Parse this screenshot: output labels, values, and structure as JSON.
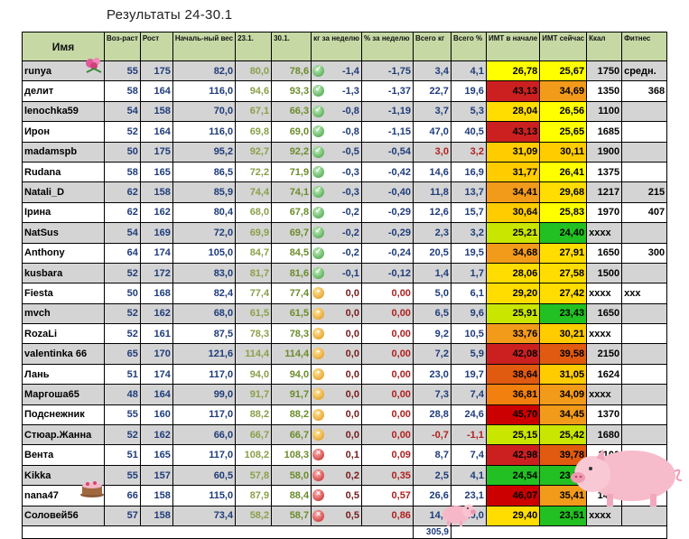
{
  "title": "Результаты  24-30.1",
  "headers": {
    "name": "Имя",
    "age": "Воз-раст",
    "height": "Рост",
    "start": "Началь-ный вес",
    "d1": "23.1.",
    "d2": "30.1.",
    "kg": "кг за неделю",
    "pct": "% за неделю",
    "totkg": "Всего кг",
    "totpct": "Всего %",
    "bmi1": "ИМТ в начале",
    "bmi2": "ИМТ сейчас",
    "kcal": "Ккал",
    "fit": "Фитнес"
  },
  "rows": [
    {
      "name": "runya",
      "age": "55",
      "height": "175",
      "start": "82,0",
      "w1": "80,0",
      "w2": "78,6",
      "mark": "green",
      "kg": "-1,4",
      "pct": "-1,75",
      "totkg": "3,4",
      "totpct": "4,1",
      "bmi1": "26,78",
      "bmi1c": "#ffff00",
      "bmi2": "25,67",
      "bmi2c": "#ffff00",
      "kcal": "1750",
      "fit": "средн."
    },
    {
      "name": "делит",
      "age": "58",
      "height": "164",
      "start": "116,0",
      "w1": "94,6",
      "w2": "93,3",
      "mark": "green",
      "kg": "-1,3",
      "pct": "-1,37",
      "totkg": "22,7",
      "totpct": "19,6",
      "bmi1": "43,13",
      "bmi1c": "#cc2020",
      "bmi2": "34,69",
      "bmi2c": "#f29a1a",
      "kcal": "1350",
      "fit": "368"
    },
    {
      "name": "lenochka59",
      "age": "54",
      "height": "158",
      "start": "70,0",
      "w1": "67,1",
      "w2": "66,3",
      "mark": "green",
      "kg": "-0,8",
      "pct": "-1,19",
      "totkg": "3,7",
      "totpct": "5,3",
      "bmi1": "28,04",
      "bmi1c": "#ffdd00",
      "bmi2": "26,56",
      "bmi2c": "#ffff00",
      "kcal": "1100",
      "fit": ""
    },
    {
      "name": "Ирон",
      "age": "52",
      "height": "164",
      "start": "116,0",
      "w1": "69,8",
      "w2": "69,0",
      "mark": "green",
      "kg": "-0,8",
      "pct": "-1,15",
      "totkg": "47,0",
      "totpct": "40,5",
      "bmi1": "43,13",
      "bmi1c": "#cc2020",
      "bmi2": "25,65",
      "bmi2c": "#ffff00",
      "kcal": "1685",
      "fit": ""
    },
    {
      "name": "madamspb",
      "age": "50",
      "height": "175",
      "start": "95,2",
      "w1": "92,7",
      "w2": "92,2",
      "mark": "green",
      "kg": "-0,5",
      "pct": "-0,54",
      "totkg": "3,0",
      "totkgneg": true,
      "totpct": "3,2",
      "totpctneg": true,
      "bmi1": "31,09",
      "bmi1c": "#ffcc00",
      "bmi2": "30,11",
      "bmi2c": "#ffcc00",
      "kcal": "1900",
      "fit": ""
    },
    {
      "name": "Rudana",
      "age": "58",
      "height": "165",
      "start": "86,5",
      "w1": "72,2",
      "w2": "71,9",
      "mark": "green",
      "kg": "-0,3",
      "pct": "-0,42",
      "totkg": "14,6",
      "totpct": "16,9",
      "bmi1": "31,77",
      "bmi1c": "#ffcc00",
      "bmi2": "26,41",
      "bmi2c": "#ffff00",
      "kcal": "1375",
      "fit": ""
    },
    {
      "name": "Natali_D",
      "age": "62",
      "height": "158",
      "start": "85,9",
      "w1": "74,4",
      "w2": "74,1",
      "mark": "green",
      "kg": "-0,3",
      "pct": "-0,40",
      "totkg": "11,8",
      "totpct": "13,7",
      "bmi1": "34,41",
      "bmi1c": "#f29a1a",
      "bmi2": "29,68",
      "bmi2c": "#ffdd00",
      "kcal": "1217",
      "fit": "215"
    },
    {
      "name": "Ірина",
      "age": "62",
      "height": "162",
      "start": "80,4",
      "w1": "68,0",
      "w2": "67,8",
      "mark": "green",
      "kg": "-0,2",
      "pct": "-0,29",
      "totkg": "12,6",
      "totpct": "15,7",
      "bmi1": "30,64",
      "bmi1c": "#ffcc00",
      "bmi2": "25,83",
      "bmi2c": "#ffff00",
      "kcal": "1970",
      "fit": "407"
    },
    {
      "name": "NatSus",
      "age": "54",
      "height": "169",
      "start": "72,0",
      "w1": "69,9",
      "w2": "69,7",
      "mark": "green",
      "kg": "-0,2",
      "pct": "-0,29",
      "totkg": "2,3",
      "totpct": "3,2",
      "bmi1": "25,21",
      "bmi1c": "#c8e600",
      "bmi2": "24,40",
      "bmi2c": "#22c022",
      "kcal": "xxxx",
      "fit": ""
    },
    {
      "name": "Anthony",
      "age": "64",
      "height": "174",
      "start": "105,0",
      "w1": "84,7",
      "w2": "84,5",
      "mark": "green",
      "kg": "-0,2",
      "pct": "-0,24",
      "totkg": "20,5",
      "totpct": "19,5",
      "bmi1": "34,68",
      "bmi1c": "#f29a1a",
      "bmi2": "27,91",
      "bmi2c": "#ffdd00",
      "kcal": "1650",
      "fit": "300"
    },
    {
      "name": "kusbara",
      "age": "52",
      "height": "172",
      "start": "83,0",
      "w1": "81,7",
      "w2": "81,6",
      "mark": "green",
      "kg": "-0,1",
      "pct": "-0,12",
      "totkg": "1,4",
      "totpct": "1,7",
      "bmi1": "28,06",
      "bmi1c": "#ffdd00",
      "bmi2": "27,58",
      "bmi2c": "#ffdd00",
      "kcal": "1500",
      "fit": ""
    },
    {
      "name": "Fiesta",
      "age": "50",
      "height": "168",
      "start": "82,4",
      "w1": "77,4",
      "w2": "77,4",
      "mark": "orange",
      "kg": "0,0",
      "pct": "0,00",
      "totkg": "5,0",
      "totpct": "6,1",
      "bmi1": "29,20",
      "bmi1c": "#ffdd00",
      "bmi2": "27,42",
      "bmi2c": "#ffdd00",
      "kcal": "xxxx",
      "fit": "xxx"
    },
    {
      "name": "mvch",
      "age": "52",
      "height": "162",
      "start": "68,0",
      "w1": "61,5",
      "w2": "61,5",
      "mark": "orange",
      "kg": "0,0",
      "pct": "0,00",
      "totkg": "6,5",
      "totpct": "9,6",
      "bmi1": "25,91",
      "bmi1c": "#c8e600",
      "bmi2": "23,43",
      "bmi2c": "#22c022",
      "kcal": "1650",
      "fit": ""
    },
    {
      "name": "RozaLi",
      "age": "52",
      "height": "161",
      "start": "87,5",
      "w1": "78,3",
      "w2": "78,3",
      "mark": "orange",
      "kg": "0,0",
      "pct": "0,00",
      "totkg": "9,2",
      "totpct": "10,5",
      "bmi1": "33,76",
      "bmi1c": "#f29a1a",
      "bmi2": "30,21",
      "bmi2c": "#ffcc00",
      "kcal": "xxxx",
      "fit": ""
    },
    {
      "name": "valentinka 66",
      "age": "65",
      "height": "170",
      "start": "121,6",
      "w1": "114,4",
      "w2": "114,4",
      "mark": "orange",
      "kg": "0,0",
      "pct": "0,00",
      "totkg": "7,2",
      "totpct": "5,9",
      "bmi1": "42,08",
      "bmi1c": "#cc2020",
      "bmi2": "39,58",
      "bmi2c": "#e05a10",
      "kcal": "2150",
      "fit": ""
    },
    {
      "name": "Лань",
      "age": "51",
      "height": "174",
      "start": "117,0",
      "w1": "94,0",
      "w2": "94,0",
      "mark": "orange",
      "kg": "0,0",
      "pct": "0,00",
      "totkg": "23,0",
      "totpct": "19,7",
      "bmi1": "38,64",
      "bmi1c": "#e05a10",
      "bmi2": "31,05",
      "bmi2c": "#ffcc00",
      "kcal": "1624",
      "fit": ""
    },
    {
      "name": "Маргоша65",
      "age": "48",
      "height": "164",
      "start": "99,0",
      "w1": "91,7",
      "w2": "91,7",
      "mark": "orange",
      "kg": "0,0",
      "pct": "0,00",
      "totkg": "7,3",
      "totpct": "7,4",
      "bmi1": "36,81",
      "bmi1c": "#f2800e",
      "bmi2": "34,09",
      "bmi2c": "#f29a1a",
      "kcal": "xxxx",
      "fit": ""
    },
    {
      "name": "Подснежник",
      "age": "55",
      "height": "160",
      "start": "117,0",
      "w1": "88,2",
      "w2": "88,2",
      "mark": "orange",
      "kg": "0,0",
      "pct": "0,00",
      "totkg": "28,8",
      "totpct": "24,6",
      "bmi1": "45,70",
      "bmi1c": "#cc0000",
      "bmi2": "34,45",
      "bmi2c": "#f29a1a",
      "kcal": "1370",
      "fit": ""
    },
    {
      "name": "Стюар.Жанна",
      "age": "52",
      "height": "162",
      "start": "66,0",
      "w1": "66,7",
      "w2": "66,7",
      "mark": "orange",
      "kg": "0,0",
      "pct": "0,00",
      "totkg": "-0,7",
      "totkgneg": true,
      "totpct": "-1,1",
      "totpctneg": true,
      "bmi1": "25,15",
      "bmi1c": "#c8e600",
      "bmi2": "25,42",
      "bmi2c": "#c8e600",
      "kcal": "1680",
      "fit": ""
    },
    {
      "name": "Вента",
      "age": "51",
      "height": "165",
      "start": "117,0",
      "w1": "108,2",
      "w2": "108,3",
      "mark": "red",
      "kg": "0,1",
      "pct": "0,09",
      "totkg": "8,7",
      "totpct": "7,4",
      "bmi1": "42,98",
      "bmi1c": "#cc2020",
      "bmi2": "39,78",
      "bmi2c": "#e05a10",
      "kcal": "1100",
      "fit": ""
    },
    {
      "name": "Kikka",
      "age": "55",
      "height": "157",
      "start": "60,5",
      "w1": "57,8",
      "w2": "58,0",
      "mark": "red",
      "kg": "0,2",
      "pct": "0,35",
      "totkg": "2,5",
      "totpct": "4,1",
      "bmi1": "24,54",
      "bmi1c": "#22c022",
      "bmi2": "23,53",
      "bmi2c": "#22c022",
      "kcal": "1400",
      "fit": "200"
    },
    {
      "name": "nana47",
      "age": "66",
      "height": "158",
      "start": "115,0",
      "w1": "87,9",
      "w2": "88,4",
      "mark": "red",
      "kg": "0,5",
      "pct": "0,57",
      "totkg": "26,6",
      "totpct": "23,1",
      "bmi1": "46,07",
      "bmi1c": "#cc0000",
      "bmi2": "35,41",
      "bmi2c": "#f29a1a",
      "kcal": "1400",
      "fit": ""
    },
    {
      "name": "Соловей56",
      "age": "57",
      "height": "158",
      "start": "73,4",
      "w1": "58,2",
      "w2": "58,7",
      "mark": "red",
      "kg": "0,5",
      "pct": "0,86",
      "totkg": "14,7",
      "totpct": "20,0",
      "bmi1": "29,40",
      "bmi1c": "#ffdd00",
      "bmi2": "23,51",
      "bmi2c": "#22c022",
      "kcal": "xxxx",
      "fit": ""
    }
  ],
  "total": "305,9"
}
